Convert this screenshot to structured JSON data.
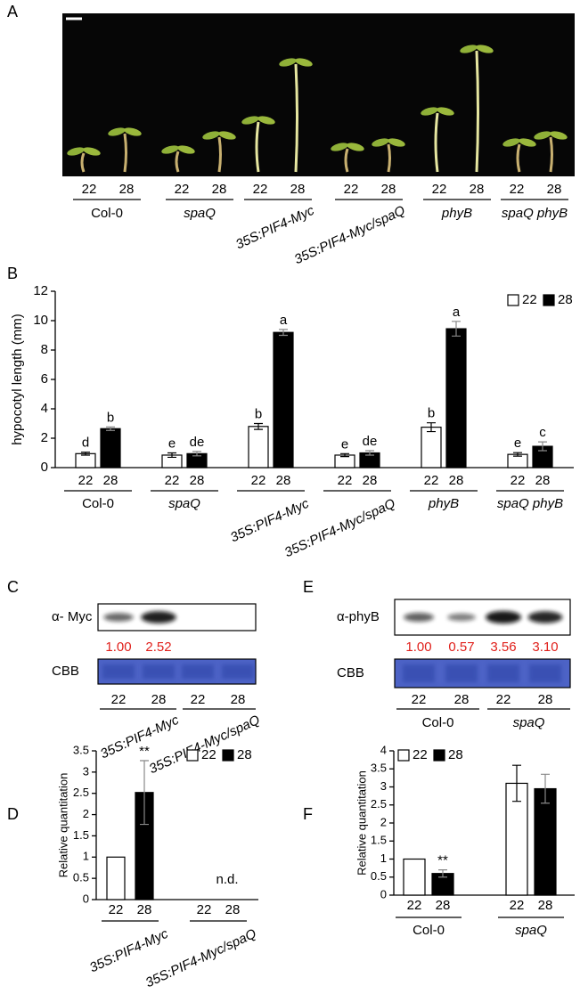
{
  "panel_labels": {
    "a": "A",
    "b": "B",
    "c": "C",
    "d": "D",
    "e": "E",
    "f": "F"
  },
  "photo": {
    "temperatures": [
      "22",
      "28"
    ],
    "genotypes": [
      "Col-0",
      "spaQ",
      "35S:PIF4-Myc",
      "35S:PIF4-Myc/spaQ",
      "phyB",
      "spaQ phyB"
    ]
  },
  "blot_c": {
    "antibody": "α- Myc",
    "loading": "CBB",
    "quantitation": [
      "1.00",
      "2.52"
    ],
    "temperatures": [
      "22",
      "28"
    ],
    "genotypes": [
      "35S:PIF4-Myc",
      "35S:PIF4-Myc/spaQ"
    ]
  },
  "blot_e": {
    "antibody": "α-phyB",
    "loading": "CBB",
    "quantitation": [
      "1.00",
      "0.57",
      "3.56",
      "3.10"
    ],
    "temperatures": [
      "22",
      "28"
    ],
    "genotypes": [
      "Col-0",
      "spaQ"
    ]
  },
  "chart_data": [
    {
      "type": "bar",
      "ylabel": "hypocotyl length (mm)",
      "categories": [
        "Col-0",
        "spaQ",
        "35S:PIF4-Myc",
        "35S:PIF4-Myc/spaQ",
        "phyB",
        "spaQ phyB"
      ],
      "series": [
        {
          "name": "22",
          "color": "#ffffff",
          "values": [
            0.95,
            0.85,
            2.8,
            0.85,
            2.75,
            0.9
          ],
          "errors": [
            0.1,
            0.15,
            0.2,
            0.1,
            0.3,
            0.12
          ],
          "labels": [
            "d",
            "e",
            "b",
            "e",
            "b",
            "e"
          ]
        },
        {
          "name": "28",
          "color": "#000000",
          "values": [
            2.65,
            0.95,
            9.2,
            1.0,
            9.45,
            1.45
          ],
          "errors": [
            0.12,
            0.15,
            0.2,
            0.15,
            0.5,
            0.3
          ],
          "labels": [
            "b",
            "de",
            "a",
            "de",
            "a",
            "c"
          ]
        }
      ],
      "ylim": [
        0,
        12
      ],
      "yticks": [
        0,
        2,
        4,
        6,
        8,
        10,
        12
      ],
      "legend": "upper right"
    },
    {
      "type": "bar",
      "ylabel": "Relative quantitation",
      "categories": [
        "35S:PIF4-Myc",
        "35S:PIF4-Myc/spaQ"
      ],
      "series": [
        {
          "name": "22",
          "color": "#ffffff",
          "values": [
            1,
            null
          ],
          "errors": [
            null,
            null
          ]
        },
        {
          "name": "28",
          "color": "#000000",
          "values": [
            2.52,
            null
          ],
          "errors": [
            0.75,
            null
          ],
          "labels": [
            "**",
            null
          ]
        }
      ],
      "notes": [
        null,
        "n.d."
      ],
      "ylim": [
        0,
        3.5
      ],
      "yticks": [
        0,
        0.5,
        1,
        1.5,
        2,
        2.5,
        3,
        3.5
      ],
      "legend": "upper right"
    },
    {
      "type": "bar",
      "ylabel": "Relative quantitation",
      "categories": [
        "Col-0",
        "spaQ"
      ],
      "series": [
        {
          "name": "22",
          "color": "#ffffff",
          "values": [
            1,
            3.1
          ],
          "errors": [
            null,
            0.5
          ]
        },
        {
          "name": "28",
          "color": "#000000",
          "values": [
            0.6,
            2.95
          ],
          "errors": [
            0.1,
            0.4
          ],
          "labels": [
            "**",
            null
          ]
        }
      ],
      "ylim": [
        0,
        4
      ],
      "yticks": [
        0,
        0.5,
        1,
        1.5,
        2,
        2.5,
        3,
        3.5,
        4
      ],
      "legend": "upper left"
    }
  ]
}
